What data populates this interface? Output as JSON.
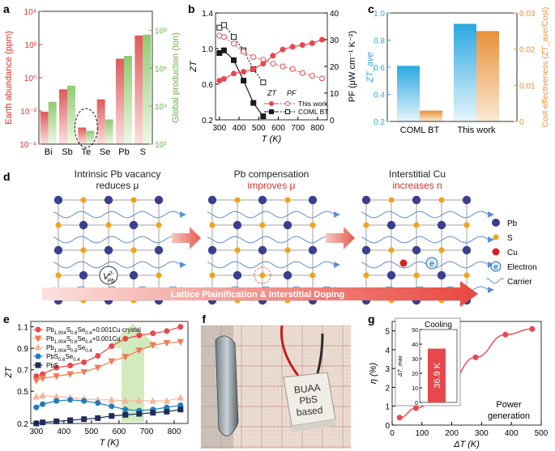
{
  "panels": {
    "a": {
      "label": "a",
      "categories": [
        "Bi",
        "Sb",
        "Te",
        "Se",
        "Pb",
        "S"
      ],
      "earth_abundance_ppm": [
        0.009,
        0.2,
        0.001,
        0.05,
        14,
        350
      ],
      "global_production_ton": [
        17000,
        120000,
        500,
        2000,
        4500000,
        60000000
      ],
      "ylabel_left": "Earth abundance (ppm)",
      "ylabel_right": "Global production (ton)",
      "left_ticks": [
        "10⁴",
        "10²",
        "10⁰",
        "10⁻²",
        "10⁻⁴"
      ],
      "right_ticks": [
        "10⁸",
        "10⁶",
        "10⁴",
        "10²"
      ],
      "colors": {
        "left": "#e05a5a",
        "right": "#8fcb6f",
        "left_axis": "#d8312b",
        "right_axis": "#6bb04a"
      }
    },
    "b": {
      "label": "b",
      "xlabel": "T (K)",
      "ylabel_left": "ZT",
      "ylabel_right": "PF (μW cm⁻¹ K⁻²)",
      "x_ticks": [
        "300",
        "400",
        "500",
        "600",
        "700",
        "800"
      ],
      "left_ticks": [
        "0.2",
        "0.6",
        "1.0",
        "1.4"
      ],
      "right_ticks": [
        "0",
        "10",
        "20",
        "30",
        "40"
      ],
      "legend_head_zt": "ZT",
      "legend_head_pf": "PF",
      "legend_rows": [
        "This work",
        "COML BT"
      ],
      "series": {
        "this_work_zt": {
          "x": [
            300,
            323,
            373,
            423,
            473,
            523,
            573,
            623,
            673,
            723,
            773,
            823
          ],
          "y": [
            0.64,
            0.66,
            0.72,
            0.74,
            0.77,
            0.83,
            0.92,
            0.99,
            1.02,
            1.04,
            1.06,
            1.1
          ]
        },
        "this_work_pf": {
          "x": [
            300,
            323,
            373,
            423,
            473,
            523,
            573,
            623,
            673,
            723,
            773,
            823
          ],
          "y": [
            31.5,
            31.0,
            28.5,
            25.5,
            23.5,
            22.5,
            21.0,
            20.0,
            19.0,
            17.5,
            16.5,
            15.5
          ]
        },
        "coml_zt": {
          "x": [
            300,
            323,
            373,
            423,
            473,
            523
          ],
          "y": [
            0.95,
            0.98,
            0.87,
            0.64,
            0.39,
            0.24
          ]
        },
        "coml_pf": {
          "x": [
            300,
            323,
            373,
            423,
            473,
            523
          ],
          "y": [
            34.5,
            35.5,
            31.0,
            26.0,
            19.0,
            14.0
          ]
        }
      },
      "colors": {
        "this_work": "#e8474b",
        "coml": "#1a1a1a"
      }
    },
    "c": {
      "label": "c",
      "categories": [
        "COML BT",
        "This work"
      ],
      "zt_ave": [
        0.61,
        0.92
      ],
      "cost_effectiveness": [
        0.003,
        0.025
      ],
      "ylabel_left": "ZT_ave",
      "ylabel_right": "Cost-effectiveness (ZT_ave/Cost)",
      "left_ticks": [
        "1.0",
        "0.8",
        "0.6",
        "0.4",
        "0.2"
      ],
      "right_ticks": [
        "0.03",
        "0.02",
        "0.01",
        "0"
      ],
      "colors": {
        "left": "#2aa8e0",
        "right": "#e8913a"
      }
    },
    "d": {
      "label": "d",
      "stage1_title": "Intrinsic Pb vacancy",
      "stage1_sub": "reduces μ",
      "stage2_title": "Pb compensation",
      "stage2_sub": "improves μ",
      "stage3_title": "Interstitial Cu",
      "stage3_sub": "increases n",
      "vacancy_label": "V",
      "vacancy_sup": "2-",
      "vacancy_sub": "Pb",
      "electron_glyph": "e",
      "banner": "Lattice Plainification & Interstitial Doping",
      "legend": [
        "Pb",
        "S",
        "Cu",
        "Electron",
        "Carrier"
      ],
      "colors": {
        "pb": "#3b3f8f",
        "s": "#f0a320",
        "cu": "#d2231e",
        "carrier": "#5b8fd6",
        "banner": "#e8473f"
      }
    },
    "e": {
      "label": "e",
      "xlabel": "T (K)",
      "ylabel": "ZT",
      "x_ticks": [
        "300",
        "400",
        "500",
        "600",
        "700",
        "800"
      ],
      "y_ticks": [
        "0.2",
        "0.5",
        "0.7",
        "0.9",
        "1.1"
      ],
      "series": [
        {
          "name": "Pb1.004S0.6Se0.4+0.001Cu crystal",
          "color": "#e8474b",
          "marker": "circle",
          "x": [
            300,
            323,
            373,
            423,
            473,
            523,
            573,
            623,
            673,
            723,
            773,
            823
          ],
          "y": [
            0.64,
            0.66,
            0.72,
            0.74,
            0.77,
            0.83,
            0.92,
            0.99,
            1.02,
            1.04,
            1.06,
            1.1
          ]
        },
        {
          "name": "Pb1.004S0.6Se0.4+0.001Cu",
          "color": "#f07a52",
          "marker": "tri-down",
          "x": [
            300,
            323,
            373,
            423,
            473,
            523,
            573,
            623,
            673,
            723,
            773,
            823
          ],
          "y": [
            0.6,
            0.62,
            0.64,
            0.66,
            0.68,
            0.72,
            0.78,
            0.82,
            0.88,
            0.93,
            0.95,
            0.96
          ]
        },
        {
          "name": "Pb1.004S0.6Se0.4",
          "color": "#f7b49a",
          "marker": "tri-up",
          "x": [
            300,
            323,
            373,
            423,
            473,
            523,
            573,
            623,
            673,
            723,
            773,
            823
          ],
          "y": [
            0.45,
            0.46,
            0.45,
            0.44,
            0.43,
            0.42,
            0.42,
            0.41,
            0.41,
            0.41,
            0.41,
            0.44
          ]
        },
        {
          "name": "PbS0.6Se0.4",
          "color": "#1f7dbf",
          "marker": "circle",
          "x": [
            300,
            323,
            373,
            423,
            473,
            523,
            573,
            623,
            673,
            723,
            773,
            823
          ],
          "y": [
            0.35,
            0.38,
            0.41,
            0.42,
            0.41,
            0.39,
            0.36,
            0.33,
            0.32,
            0.33,
            0.35,
            0.37
          ]
        },
        {
          "name": "PbS",
          "color": "#1f2d5a",
          "marker": "square",
          "x": [
            300,
            323,
            373,
            423,
            473,
            523,
            573,
            623,
            673,
            723,
            773,
            823
          ],
          "y": [
            0.2,
            0.21,
            0.22,
            0.23,
            0.24,
            0.25,
            0.27,
            0.28,
            0.29,
            0.3,
            0.31,
            0.33
          ]
        }
      ],
      "legend_labels": [
        {
          "a": "Pb",
          "b": "1.004",
          "c": "S",
          "d": "0.6",
          "e": "Se",
          "f": "0.4",
          "g": "+0.001Cu crystal"
        },
        {
          "a": "Pb",
          "b": "1.004",
          "c": "S",
          "d": "0.6",
          "e": "Se",
          "f": "0.4",
          "g": "+0.001Cu"
        },
        {
          "a": "Pb",
          "b": "1.004",
          "c": "S",
          "d": "0.6",
          "e": "Se",
          "f": "0.4",
          "g": ""
        },
        {
          "a": "PbS",
          "b": "0.6",
          "c": "Se",
          "d": "0.4",
          "e": "",
          "f": "",
          "g": ""
        },
        {
          "a": "PbS",
          "b": "",
          "c": "",
          "d": "",
          "e": "",
          "f": "",
          "g": ""
        }
      ]
    },
    "f": {
      "label": "f",
      "chip_text": [
        "BUAA",
        "PbS",
        "based"
      ]
    },
    "g": {
      "label": "g",
      "xlabel": "ΔT (K)",
      "ylabel": "η (%)",
      "x_ticks": [
        "0",
        "100",
        "200",
        "300",
        "400",
        "500"
      ],
      "y_ticks": [
        "0",
        "1",
        "2",
        "3",
        "4",
        "5"
      ],
      "points": {
        "x": [
          25,
          80,
          180,
          280,
          380,
          470
        ],
        "y": [
          0.4,
          0.9,
          2.0,
          3.6,
          4.8,
          5.1
        ]
      },
      "annotation": [
        "Power",
        "generation"
      ],
      "inset_title": "Cooling",
      "inset_ylabel": "ΔT_max",
      "inset_ticks": [
        "50",
        "40",
        "30",
        "20",
        "10",
        "0"
      ],
      "inset_value": 36.9,
      "inset_value_text": "36.9 K",
      "colors": {
        "main": "#e8474b",
        "inset_bar": "#e8474b"
      }
    }
  }
}
